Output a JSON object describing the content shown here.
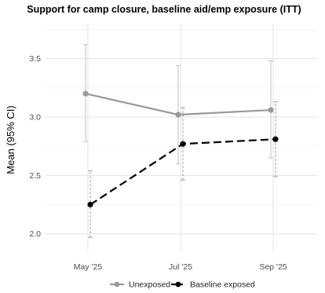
{
  "chart_data": {
    "type": "line",
    "title": "Support for camp closure, baseline aid/emp exposure (ITT)",
    "ylabel": "Mean (95% CI)",
    "xlabel": "",
    "categories": [
      "May '25",
      "Jul '25",
      "Sep '25"
    ],
    "yticks": [
      "2.0",
      "2.5",
      "3.0",
      "3.5"
    ],
    "ylim": [
      1.85,
      3.8
    ],
    "grid": true,
    "legend_position": "bottom",
    "series": [
      {
        "name": "Unexposed",
        "color": "#999999",
        "line_style": "solid",
        "values": [
          3.2,
          3.02,
          3.06
        ],
        "ci_low": [
          2.79,
          2.6,
          2.65
        ],
        "ci_high": [
          3.62,
          3.44,
          3.48
        ]
      },
      {
        "name": "Baseline exposed",
        "color": "#000000",
        "line_style": "dashed",
        "values": [
          2.25,
          2.77,
          2.81
        ],
        "ci_low": [
          1.97,
          2.46,
          2.49
        ],
        "ci_high": [
          2.54,
          3.08,
          3.13
        ]
      }
    ]
  }
}
